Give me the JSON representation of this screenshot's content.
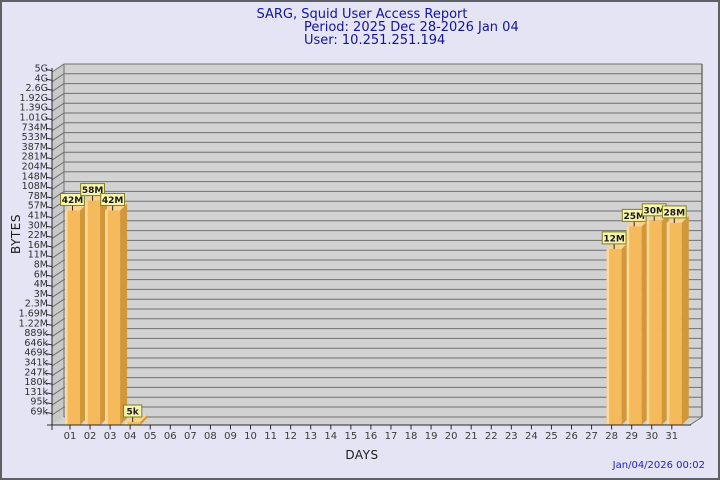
{
  "title": {
    "line1": "SARG, Squid User Access Report",
    "line2": "Period: 2025 Dec 28-2026 Jan 04",
    "line3": "User: 10.251.251.194"
  },
  "axes": {
    "y_label": "BYTES",
    "x_label": "DAYS"
  },
  "footer": {
    "timestamp": "Jan/04/2026 00:02"
  },
  "colors": {
    "page_bg": "#e4e4f5",
    "frame_border": "#5f5f68",
    "title_text": "#14149b",
    "timestamp_text": "#2222c8",
    "plot_bg": "#d2d2d2",
    "wall_bg": "#c9c9c9",
    "grid_line": "#6f6f6f",
    "axis_line": "#2a2a2a",
    "tick_text": "#303030",
    "bar_face": "#f5ba5c",
    "bar_side": "#d3973b",
    "bar_top": "#fbd28c",
    "bar_highlight": "#fdda95",
    "value_box_bg": "#f8f5ae",
    "value_box_border": "#7f7f1e",
    "value_box_text": "#1a1a1a"
  },
  "chart_data": {
    "type": "bar",
    "title": "SARG, Squid User Access Report",
    "subtitle": [
      "Period: 2025 Dec 28-2026 Jan 04",
      "User: 10.251.251.194"
    ],
    "xlabel": "DAYS",
    "ylabel": "BYTES",
    "y_scale": "log",
    "grid": true,
    "legend": false,
    "y_ticks": [
      {
        "label": "5G",
        "value": 5000000000
      },
      {
        "label": "4G",
        "value": 4000000000
      },
      {
        "label": "2.6G",
        "value": 2600000000
      },
      {
        "label": "1.92G",
        "value": 1920000000
      },
      {
        "label": "1.39G",
        "value": 1390000000
      },
      {
        "label": "1.01G",
        "value": 1010000000
      },
      {
        "label": "734M",
        "value": 734000000
      },
      {
        "label": "533M",
        "value": 533000000
      },
      {
        "label": "387M",
        "value": 387000000
      },
      {
        "label": "281M",
        "value": 281000000
      },
      {
        "label": "204M",
        "value": 204000000
      },
      {
        "label": "148M",
        "value": 148000000
      },
      {
        "label": "108M",
        "value": 108000000
      },
      {
        "label": "78M",
        "value": 78000000
      },
      {
        "label": "57M",
        "value": 57000000
      },
      {
        "label": "41M",
        "value": 41000000
      },
      {
        "label": "30M",
        "value": 30000000
      },
      {
        "label": "22M",
        "value": 22000000
      },
      {
        "label": "16M",
        "value": 16000000
      },
      {
        "label": "11M",
        "value": 11000000
      },
      {
        "label": "8M",
        "value": 8000000
      },
      {
        "label": "6M",
        "value": 6000000
      },
      {
        "label": "4M",
        "value": 4000000
      },
      {
        "label": "3M",
        "value": 3000000
      },
      {
        "label": "2.3M",
        "value": 2300000
      },
      {
        "label": "1.69M",
        "value": 1690000
      },
      {
        "label": "1.22M",
        "value": 1220000
      },
      {
        "label": "889k",
        "value": 889000
      },
      {
        "label": "646k",
        "value": 646000
      },
      {
        "label": "469k",
        "value": 469000
      },
      {
        "label": "341k",
        "value": 341000
      },
      {
        "label": "247k",
        "value": 247000
      },
      {
        "label": "180k",
        "value": 180000
      },
      {
        "label": "131k",
        "value": 131000
      },
      {
        "label": "95k",
        "value": 95000
      },
      {
        "label": "69k",
        "value": 69000
      }
    ],
    "categories": [
      "01",
      "02",
      "03",
      "04",
      "05",
      "06",
      "07",
      "08",
      "09",
      "10",
      "11",
      "12",
      "13",
      "14",
      "15",
      "16",
      "17",
      "18",
      "19",
      "20",
      "21",
      "22",
      "23",
      "24",
      "25",
      "26",
      "27",
      "28",
      "29",
      "30",
      "31"
    ],
    "bars": [
      {
        "category": "01",
        "value": 42000000,
        "label": "42M"
      },
      {
        "category": "02",
        "value": 58000000,
        "label": "58M"
      },
      {
        "category": "03",
        "value": 42000000,
        "label": "42M"
      },
      {
        "category": "04",
        "value": 5000,
        "label": "5k"
      },
      {
        "category": "28",
        "value": 12000000,
        "label": "12M"
      },
      {
        "category": "29",
        "value": 25000000,
        "label": "25M"
      },
      {
        "category": "30",
        "value": 30000000,
        "label": "30M"
      },
      {
        "category": "31",
        "value": 28000000,
        "label": "28M"
      }
    ],
    "timestamp": "Jan/04/2026 00:02"
  }
}
